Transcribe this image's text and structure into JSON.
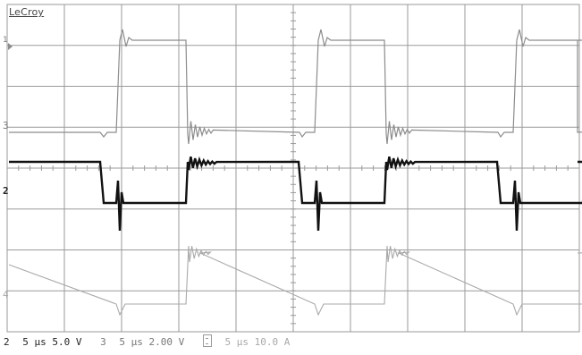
{
  "brand": "LeCroy",
  "markers": {
    "ch1": "1",
    "ch2": "2",
    "ch3": "3",
    "ch4": "4"
  },
  "status": {
    "ch2_num": "2",
    "ch2_setting": "5 µs 5.0 V",
    "ch3_num": "3",
    "ch3_setting": "5 µs 2.00 V",
    "ch4_setting": "5 µs 10.0 A"
  },
  "colors": {
    "grid": "#9a9a9a",
    "ch1": "#8c8c8c",
    "ch2": "#111111",
    "ch3": "#8a8a8a",
    "ch4": "#a9a9a9"
  }
}
